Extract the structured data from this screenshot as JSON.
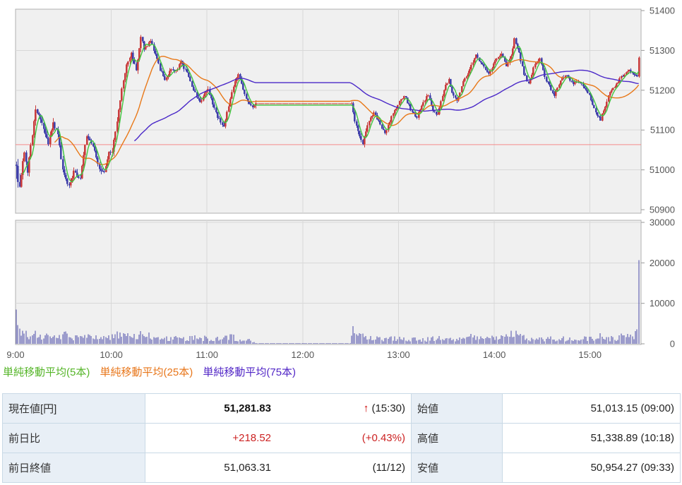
{
  "colors": {
    "plot_bg": "#f0f0f0",
    "plot_border": "#b0b0b0",
    "grid": "#d8d8d8",
    "axis_text": "#555555",
    "up_candle": "#c83c3c",
    "down_candle": "#4040aa",
    "prev_close_line": "#f78b8b",
    "volume_bar": "#4848a8",
    "ma5": "#3fc53f",
    "ma25": "#e87818",
    "ma75": "#4a28c8",
    "table_border": "#c9d9e6",
    "table_label_bg": "#e8eff6",
    "negative_red": "#cc2222"
  },
  "legend": {
    "items": [
      {
        "label": "単純移動平均(5本)",
        "color": "#55b528"
      },
      {
        "label": "単純移動平均(25本)",
        "color": "#e8761a"
      },
      {
        "label": "単純移動平均(75本)",
        "color": "#5126c6"
      }
    ]
  },
  "table": {
    "rows_left": [
      {
        "label": "現在値[円]",
        "main": "51,281.83",
        "arrow": "↑",
        "sub": "(15:30)"
      },
      {
        "label": "前日比",
        "main": "+218.52",
        "arrow": "",
        "sub": "(+0.43%)"
      },
      {
        "label": "前日終値",
        "main": "51,063.31",
        "arrow": "",
        "sub": "(11/12)"
      }
    ],
    "rows_right": [
      {
        "label": "始値",
        "value": "51,013.15 (09:00)"
      },
      {
        "label": "高値",
        "value": "51,338.89 (10:18)"
      },
      {
        "label": "安値",
        "value": "50,954.27 (09:33)"
      }
    ]
  },
  "chart_data": [
    {
      "type": "candlestick",
      "interval": "1min",
      "session_start": "9:00",
      "session_end": "15:30",
      "lunch_break": [
        "11:30",
        "12:30"
      ],
      "ylim": [
        50900,
        51400
      ],
      "yticks": [
        51400,
        51300,
        51200,
        51100,
        51000,
        50900
      ],
      "xticks": [
        {
          "label": "9:00",
          "t": 0
        },
        {
          "label": "10:00",
          "t": 60
        },
        {
          "label": "11:00",
          "t": 120
        },
        {
          "label": "12:00",
          "t": 180
        },
        {
          "label": "13:00",
          "t": 240
        },
        {
          "label": "14:00",
          "t": 300
        },
        {
          "label": "15:00",
          "t": 360
        }
      ],
      "prev_close": 51063.31,
      "open": 51013.15,
      "high": 51338.89,
      "high_time": "10:18",
      "low": 50954.27,
      "low_time": "9:33",
      "close": 51281.83,
      "close_time": "15:30",
      "lunch_flat_price": 51167,
      "moving_averages": [
        {
          "period": 5,
          "color": "#3fc53f"
        },
        {
          "period": 25,
          "color": "#e87818"
        },
        {
          "period": 75,
          "color": "#4a28c8"
        }
      ],
      "price_path": [
        [
          0,
          51013
        ],
        [
          1,
          50968
        ],
        [
          2,
          50957
        ],
        [
          3,
          50990
        ],
        [
          5,
          51048
        ],
        [
          7,
          50996
        ],
        [
          9,
          51062
        ],
        [
          12,
          51152
        ],
        [
          14,
          51142
        ],
        [
          17,
          51106
        ],
        [
          20,
          51063
        ],
        [
          23,
          51118
        ],
        [
          26,
          51088
        ],
        [
          29,
          51002
        ],
        [
          33,
          50957
        ],
        [
          36,
          50996
        ],
        [
          40,
          50980
        ],
        [
          44,
          51088
        ],
        [
          48,
          51062
        ],
        [
          52,
          51002
        ],
        [
          55,
          50992
        ],
        [
          58,
          51042
        ],
        [
          60,
          51048
        ],
        [
          63,
          51122
        ],
        [
          66,
          51205
        ],
        [
          69,
          51262
        ],
        [
          72,
          51292
        ],
        [
          75,
          51248
        ],
        [
          78,
          51335
        ],
        [
          80,
          51305
        ],
        [
          84,
          51322
        ],
        [
          87,
          51292
        ],
        [
          90,
          51252
        ],
        [
          93,
          51227
        ],
        [
          97,
          51252
        ],
        [
          100,
          51247
        ],
        [
          103,
          51272
        ],
        [
          107,
          51242
        ],
        [
          111,
          51202
        ],
        [
          115,
          51167
        ],
        [
          118,
          51197
        ],
        [
          120,
          51202
        ],
        [
          123,
          51167
        ],
        [
          126,
          51132
        ],
        [
          130,
          51107
        ],
        [
          133,
          51162
        ],
        [
          136,
          51212
        ],
        [
          139,
          51237
        ],
        [
          142,
          51202
        ],
        [
          145,
          51172
        ],
        [
          148,
          51157
        ],
        [
          150,
          51167
        ],
        [
          210,
          51167
        ],
        [
          212,
          51122
        ],
        [
          215,
          51087
        ],
        [
          217,
          51066
        ],
        [
          220,
          51112
        ],
        [
          224,
          51147
        ],
        [
          228,
          51112
        ],
        [
          231,
          51092
        ],
        [
          235,
          51132
        ],
        [
          240,
          51172
        ],
        [
          243,
          51187
        ],
        [
          247,
          51152
        ],
        [
          251,
          51132
        ],
        [
          255,
          51172
        ],
        [
          258,
          51187
        ],
        [
          261,
          51152
        ],
        [
          264,
          51137
        ],
        [
          268,
          51202
        ],
        [
          271,
          51227
        ],
        [
          273,
          51192
        ],
        [
          276,
          51172
        ],
        [
          280,
          51222
        ],
        [
          284,
          51252
        ],
        [
          288,
          51287
        ],
        [
          292,
          51262
        ],
        [
          296,
          51242
        ],
        [
          300,
          51272
        ],
        [
          304,
          51292
        ],
        [
          307,
          51262
        ],
        [
          310,
          51287
        ],
        [
          312,
          51330
        ],
        [
          315,
          51292
        ],
        [
          318,
          51242
        ],
        [
          321,
          51217
        ],
        [
          325,
          51267
        ],
        [
          328,
          51277
        ],
        [
          331,
          51232
        ],
        [
          334,
          51212
        ],
        [
          337,
          51187
        ],
        [
          341,
          51227
        ],
        [
          345,
          51237
        ],
        [
          349,
          51217
        ],
        [
          353,
          51222
        ],
        [
          357,
          51202
        ],
        [
          360,
          51177
        ],
        [
          363,
          51142
        ],
        [
          366,
          51127
        ],
        [
          369,
          51162
        ],
        [
          372,
          51197
        ],
        [
          375,
          51207
        ],
        [
          378,
          51227
        ],
        [
          381,
          51242
        ],
        [
          384,
          51252
        ],
        [
          387,
          51242
        ],
        [
          389,
          51237
        ],
        [
          390,
          51281.83
        ]
      ]
    },
    {
      "type": "bar",
      "name": "volume",
      "ylim": [
        0,
        30000
      ],
      "yticks": [
        30000,
        20000,
        10000,
        0
      ],
      "closing_spike": {
        "t": 390,
        "value": 20700
      },
      "opening_spike": {
        "t": 0,
        "value": 8500
      },
      "volume_path": [
        [
          0,
          8500
        ],
        [
          1,
          4500
        ],
        [
          2,
          3200
        ],
        [
          4,
          2800
        ],
        [
          8,
          2400
        ],
        [
          12,
          2700
        ],
        [
          16,
          2000
        ],
        [
          20,
          1700
        ],
        [
          25,
          1500
        ],
        [
          30,
          2300
        ],
        [
          35,
          1700
        ],
        [
          40,
          1400
        ],
        [
          48,
          1600
        ],
        [
          55,
          1300
        ],
        [
          60,
          2100
        ],
        [
          65,
          2500
        ],
        [
          70,
          1900
        ],
        [
          78,
          2400
        ],
        [
          85,
          1600
        ],
        [
          95,
          1300
        ],
        [
          105,
          1200
        ],
        [
          112,
          1500
        ],
        [
          120,
          1300
        ],
        [
          128,
          1200
        ],
        [
          135,
          1600
        ],
        [
          142,
          1000
        ],
        [
          148,
          700
        ],
        [
          150,
          120
        ],
        [
          209,
          120
        ],
        [
          211,
          3600
        ],
        [
          214,
          2000
        ],
        [
          220,
          1400
        ],
        [
          230,
          1100
        ],
        [
          240,
          1400
        ],
        [
          252,
          1000
        ],
        [
          262,
          1300
        ],
        [
          275,
          1200
        ],
        [
          288,
          1700
        ],
        [
          300,
          1400
        ],
        [
          312,
          2300
        ],
        [
          322,
          1200
        ],
        [
          335,
          1200
        ],
        [
          348,
          1300
        ],
        [
          358,
          1500
        ],
        [
          365,
          1900
        ],
        [
          372,
          1400
        ],
        [
          380,
          1700
        ],
        [
          386,
          1900
        ],
        [
          389,
          2600
        ],
        [
          390,
          20700
        ]
      ]
    }
  ]
}
